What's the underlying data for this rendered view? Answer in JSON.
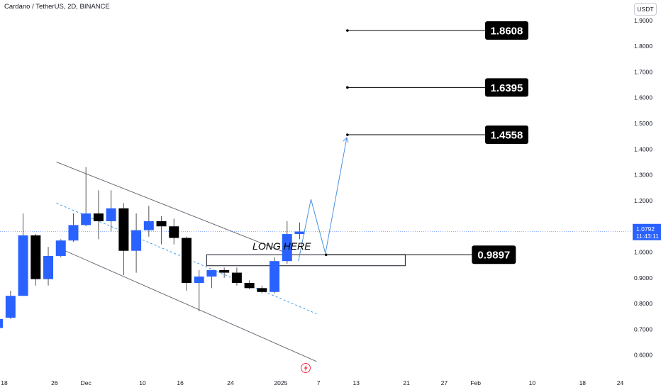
{
  "header": {
    "title": "Cardano / TetherUS, 2D, BINANCE",
    "currency": "USDT"
  },
  "colors": {
    "bull": "#2962ff",
    "bear": "#000000",
    "wick": "#555555",
    "channel": "#5d606b",
    "midline": "#2196f3",
    "projection": "#4a90e2",
    "price_label": "#2962ff"
  },
  "chart_data": {
    "type": "candlestick",
    "symbol": "Cardano / TetherUS",
    "interval": "2D",
    "exchange": "BINANCE",
    "ylim": [
      0.55,
      1.95
    ],
    "y_ticks": [
      {
        "label": "0.6000",
        "value": 0.6
      },
      {
        "label": "0.7000",
        "value": 0.7
      },
      {
        "label": "0.8000",
        "value": 0.8
      },
      {
        "label": "0.9000",
        "value": 0.9
      },
      {
        "label": "1.0000",
        "value": 1.0
      },
      {
        "label": "1.1000",
        "value": 1.1
      },
      {
        "label": "1.2000",
        "value": 1.2
      },
      {
        "label": "1.3000",
        "value": 1.3
      },
      {
        "label": "1.4000",
        "value": 1.4
      },
      {
        "label": "1.5000",
        "value": 1.5
      },
      {
        "label": "1.6000",
        "value": 1.6
      },
      {
        "label": "1.7000",
        "value": 1.7
      },
      {
        "label": "1.8000",
        "value": 1.8
      },
      {
        "label": "1.9000",
        "value": 1.9
      }
    ],
    "x_ticks": [
      {
        "label": "18",
        "date": "2024-11-18"
      },
      {
        "label": "26",
        "date": "2024-11-26"
      },
      {
        "label": "Dec",
        "date": "2024-12-01"
      },
      {
        "label": "10",
        "date": "2024-12-10"
      },
      {
        "label": "16",
        "date": "2024-12-16"
      },
      {
        "label": "24",
        "date": "2024-12-24"
      },
      {
        "label": "2025",
        "date": "2025-01-01"
      },
      {
        "label": "7",
        "date": "2025-01-07"
      },
      {
        "label": "13",
        "date": "2025-01-13"
      },
      {
        "label": "21",
        "date": "2025-01-21"
      },
      {
        "label": "27",
        "date": "2025-01-27"
      },
      {
        "label": "Feb",
        "date": "2025-02-01"
      },
      {
        "label": "10",
        "date": "2025-02-10"
      },
      {
        "label": "18",
        "date": "2025-02-18"
      },
      {
        "label": "24",
        "date": "2025-02-24"
      }
    ],
    "candles": [
      {
        "date": "2024-11-17",
        "open": 0.705,
        "high": 0.745,
        "low": 0.705,
        "close": 0.74
      },
      {
        "date": "2024-11-19",
        "open": 0.745,
        "high": 0.85,
        "low": 0.74,
        "close": 0.83
      },
      {
        "date": "2024-11-21",
        "open": 0.83,
        "high": 1.15,
        "low": 0.83,
        "close": 1.065
      },
      {
        "date": "2024-11-23",
        "open": 1.065,
        "high": 1.07,
        "low": 0.87,
        "close": 0.895
      },
      {
        "date": "2024-11-25",
        "open": 0.895,
        "high": 1.02,
        "low": 0.87,
        "close": 0.985
      },
      {
        "date": "2024-11-27",
        "open": 0.985,
        "high": 1.05,
        "low": 0.98,
        "close": 1.045
      },
      {
        "date": "2024-11-29",
        "open": 1.045,
        "high": 1.15,
        "low": 1.04,
        "close": 1.105
      },
      {
        "date": "2024-12-01",
        "open": 1.105,
        "high": 1.33,
        "low": 1.1,
        "close": 1.15
      },
      {
        "date": "2024-12-03",
        "open": 1.15,
        "high": 1.24,
        "low": 1.05,
        "close": 1.12
      },
      {
        "date": "2024-12-05",
        "open": 1.12,
        "high": 1.24,
        "low": 1.08,
        "close": 1.17
      },
      {
        "date": "2024-12-07",
        "open": 1.17,
        "high": 1.19,
        "low": 0.91,
        "close": 1.005
      },
      {
        "date": "2024-12-09",
        "open": 1.005,
        "high": 1.15,
        "low": 0.92,
        "close": 1.085
      },
      {
        "date": "2024-12-11",
        "open": 1.085,
        "high": 1.18,
        "low": 1.06,
        "close": 1.12
      },
      {
        "date": "2024-12-13",
        "open": 1.12,
        "high": 1.14,
        "low": 1.03,
        "close": 1.1
      },
      {
        "date": "2024-12-15",
        "open": 1.1,
        "high": 1.13,
        "low": 1.03,
        "close": 1.055
      },
      {
        "date": "2024-12-17",
        "open": 1.055,
        "high": 1.06,
        "low": 0.85,
        "close": 0.88
      },
      {
        "date": "2024-12-19",
        "open": 0.88,
        "high": 0.93,
        "low": 0.77,
        "close": 0.905
      },
      {
        "date": "2024-12-21",
        "open": 0.905,
        "high": 0.93,
        "low": 0.86,
        "close": 0.93
      },
      {
        "date": "2024-12-23",
        "open": 0.93,
        "high": 0.94,
        "low": 0.9,
        "close": 0.92
      },
      {
        "date": "2024-12-25",
        "open": 0.92,
        "high": 0.94,
        "low": 0.87,
        "close": 0.88
      },
      {
        "date": "2024-12-27",
        "open": 0.88,
        "high": 0.89,
        "low": 0.855,
        "close": 0.86
      },
      {
        "date": "2024-12-29",
        "open": 0.86,
        "high": 0.87,
        "low": 0.84,
        "close": 0.845
      },
      {
        "date": "2024-12-31",
        "open": 0.845,
        "high": 0.98,
        "low": 0.84,
        "close": 0.965
      },
      {
        "date": "2025-01-02",
        "open": 0.965,
        "high": 1.12,
        "low": 0.955,
        "close": 1.07
      },
      {
        "date": "2025-01-04",
        "open": 1.07,
        "high": 1.115,
        "low": 1.05,
        "close": 1.08
      }
    ],
    "levels": [
      {
        "label": "1.8608",
        "value": 1.8608
      },
      {
        "label": "1.6395",
        "value": 1.6395
      },
      {
        "label": "1.4558",
        "value": 1.4558
      }
    ],
    "entry": {
      "label": "0.9897",
      "value": 0.9897,
      "note": "LONG HERE"
    },
    "last_price": {
      "value": "1.0792",
      "countdown": "11:43:11"
    }
  }
}
